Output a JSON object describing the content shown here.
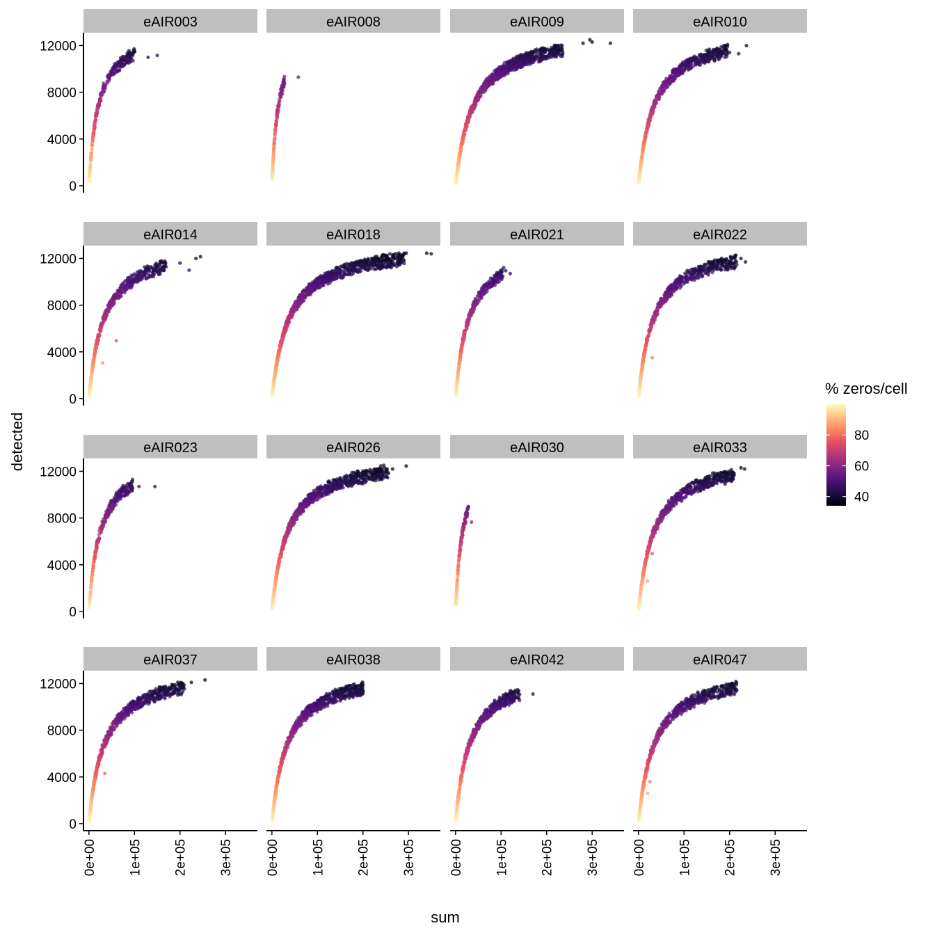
{
  "chart_data": {
    "type": "scatter",
    "layout": "facet_wrap",
    "ncol": 4,
    "xlabel": "sum",
    "ylabel": "detected",
    "x_ticks": [
      0,
      100000,
      200000,
      300000
    ],
    "x_tick_labels": [
      "0e+00",
      "1e+05",
      "2e+05",
      "3e+05"
    ],
    "xlim": [
      -12000,
      370000
    ],
    "y_ticks": [
      0,
      4000,
      8000,
      12000
    ],
    "y_tick_labels": [
      "0",
      "4000",
      "8000",
      "12000"
    ],
    "ylim": [
      -600,
      13100
    ],
    "color_variable": "% zeros/cell",
    "colormap": "magma",
    "color_range": [
      34,
      100
    ],
    "legend": {
      "title": "% zeros/cell",
      "position": "right",
      "ticks": [
        40,
        60,
        80
      ],
      "tick_labels": [
        "40",
        "60",
        "80"
      ]
    },
    "curve_model": "detected = 13500 * sum / (sum + k)",
    "panels": [
      {
        "label": "eAIR003",
        "k": 20000,
        "x_max": 100000,
        "n": 280,
        "outliers": [
          [
            130000,
            11000
          ],
          [
            150000,
            11150
          ]
        ]
      },
      {
        "label": "eAIR008",
        "k": 14000,
        "x_max": 28000,
        "n": 150,
        "outliers": [
          [
            58000,
            9300
          ]
        ]
      },
      {
        "label": "eAIR009",
        "k": 38000,
        "x_max": 235000,
        "n": 900,
        "outliers": [
          [
            280000,
            12200
          ],
          [
            295000,
            12500
          ],
          [
            300000,
            12300
          ],
          [
            340000,
            12200
          ]
        ]
      },
      {
        "label": "eAIR010",
        "k": 33000,
        "x_max": 195000,
        "n": 650,
        "outliers": [
          [
            200000,
            11400
          ],
          [
            220000,
            11300
          ],
          [
            237000,
            12000
          ]
        ]
      },
      {
        "label": "eAIR014",
        "k": 32000,
        "x_max": 170000,
        "n": 500,
        "outliers": [
          [
            60000,
            4950
          ],
          [
            30000,
            3050
          ],
          [
            200000,
            11600
          ],
          [
            220000,
            11000
          ],
          [
            235000,
            12000
          ],
          [
            245000,
            12150
          ]
        ]
      },
      {
        "label": "eAIR018",
        "k": 37000,
        "x_max": 290000,
        "n": 1000,
        "outliers": [
          [
            295000,
            12450
          ],
          [
            340000,
            12450
          ],
          [
            350000,
            12400
          ]
        ]
      },
      {
        "label": "eAIR021",
        "k": 28000,
        "x_max": 105000,
        "n": 320,
        "outliers": [
          [
            110000,
            10950
          ],
          [
            120000,
            10700
          ]
        ]
      },
      {
        "label": "eAIR022",
        "k": 32000,
        "x_max": 215000,
        "n": 600,
        "outliers": [
          [
            30000,
            3500
          ],
          [
            215000,
            11700
          ],
          [
            225000,
            12000
          ],
          [
            235000,
            11700
          ]
        ]
      },
      {
        "label": "eAIR023",
        "k": 24000,
        "x_max": 95000,
        "n": 300,
        "outliers": [
          [
            110000,
            10700
          ],
          [
            145000,
            10700
          ]
        ]
      },
      {
        "label": "eAIR026",
        "k": 34000,
        "x_max": 255000,
        "n": 900,
        "outliers": [
          [
            265000,
            12200
          ],
          [
            295000,
            12450
          ]
        ]
      },
      {
        "label": "eAIR030",
        "k": 15000,
        "x_max": 28000,
        "n": 150,
        "outliers": [
          [
            35000,
            7650
          ]
        ]
      },
      {
        "label": "eAIR033",
        "k": 33000,
        "x_max": 210000,
        "n": 650,
        "outliers": [
          [
            30000,
            4950
          ],
          [
            20000,
            2600
          ],
          [
            190000,
            10900
          ],
          [
            225000,
            12300
          ],
          [
            233000,
            12200
          ]
        ]
      },
      {
        "label": "eAIR037",
        "k": 33000,
        "x_max": 210000,
        "n": 650,
        "outliers": [
          [
            35000,
            4300
          ],
          [
            225000,
            12100
          ],
          [
            255000,
            12300
          ]
        ]
      },
      {
        "label": "eAIR038",
        "k": 33000,
        "x_max": 200000,
        "n": 800,
        "outliers": [
          [
            200000,
            11900
          ]
        ]
      },
      {
        "label": "eAIR042",
        "k": 30000,
        "x_max": 140000,
        "n": 560,
        "outliers": [
          [
            170000,
            11100
          ]
        ]
      },
      {
        "label": "eAIR047",
        "k": 34000,
        "x_max": 215000,
        "n": 650,
        "outliers": [
          [
            25000,
            3600
          ],
          [
            20000,
            2600
          ],
          [
            200000,
            11700
          ],
          [
            215000,
            11900
          ]
        ]
      }
    ]
  }
}
